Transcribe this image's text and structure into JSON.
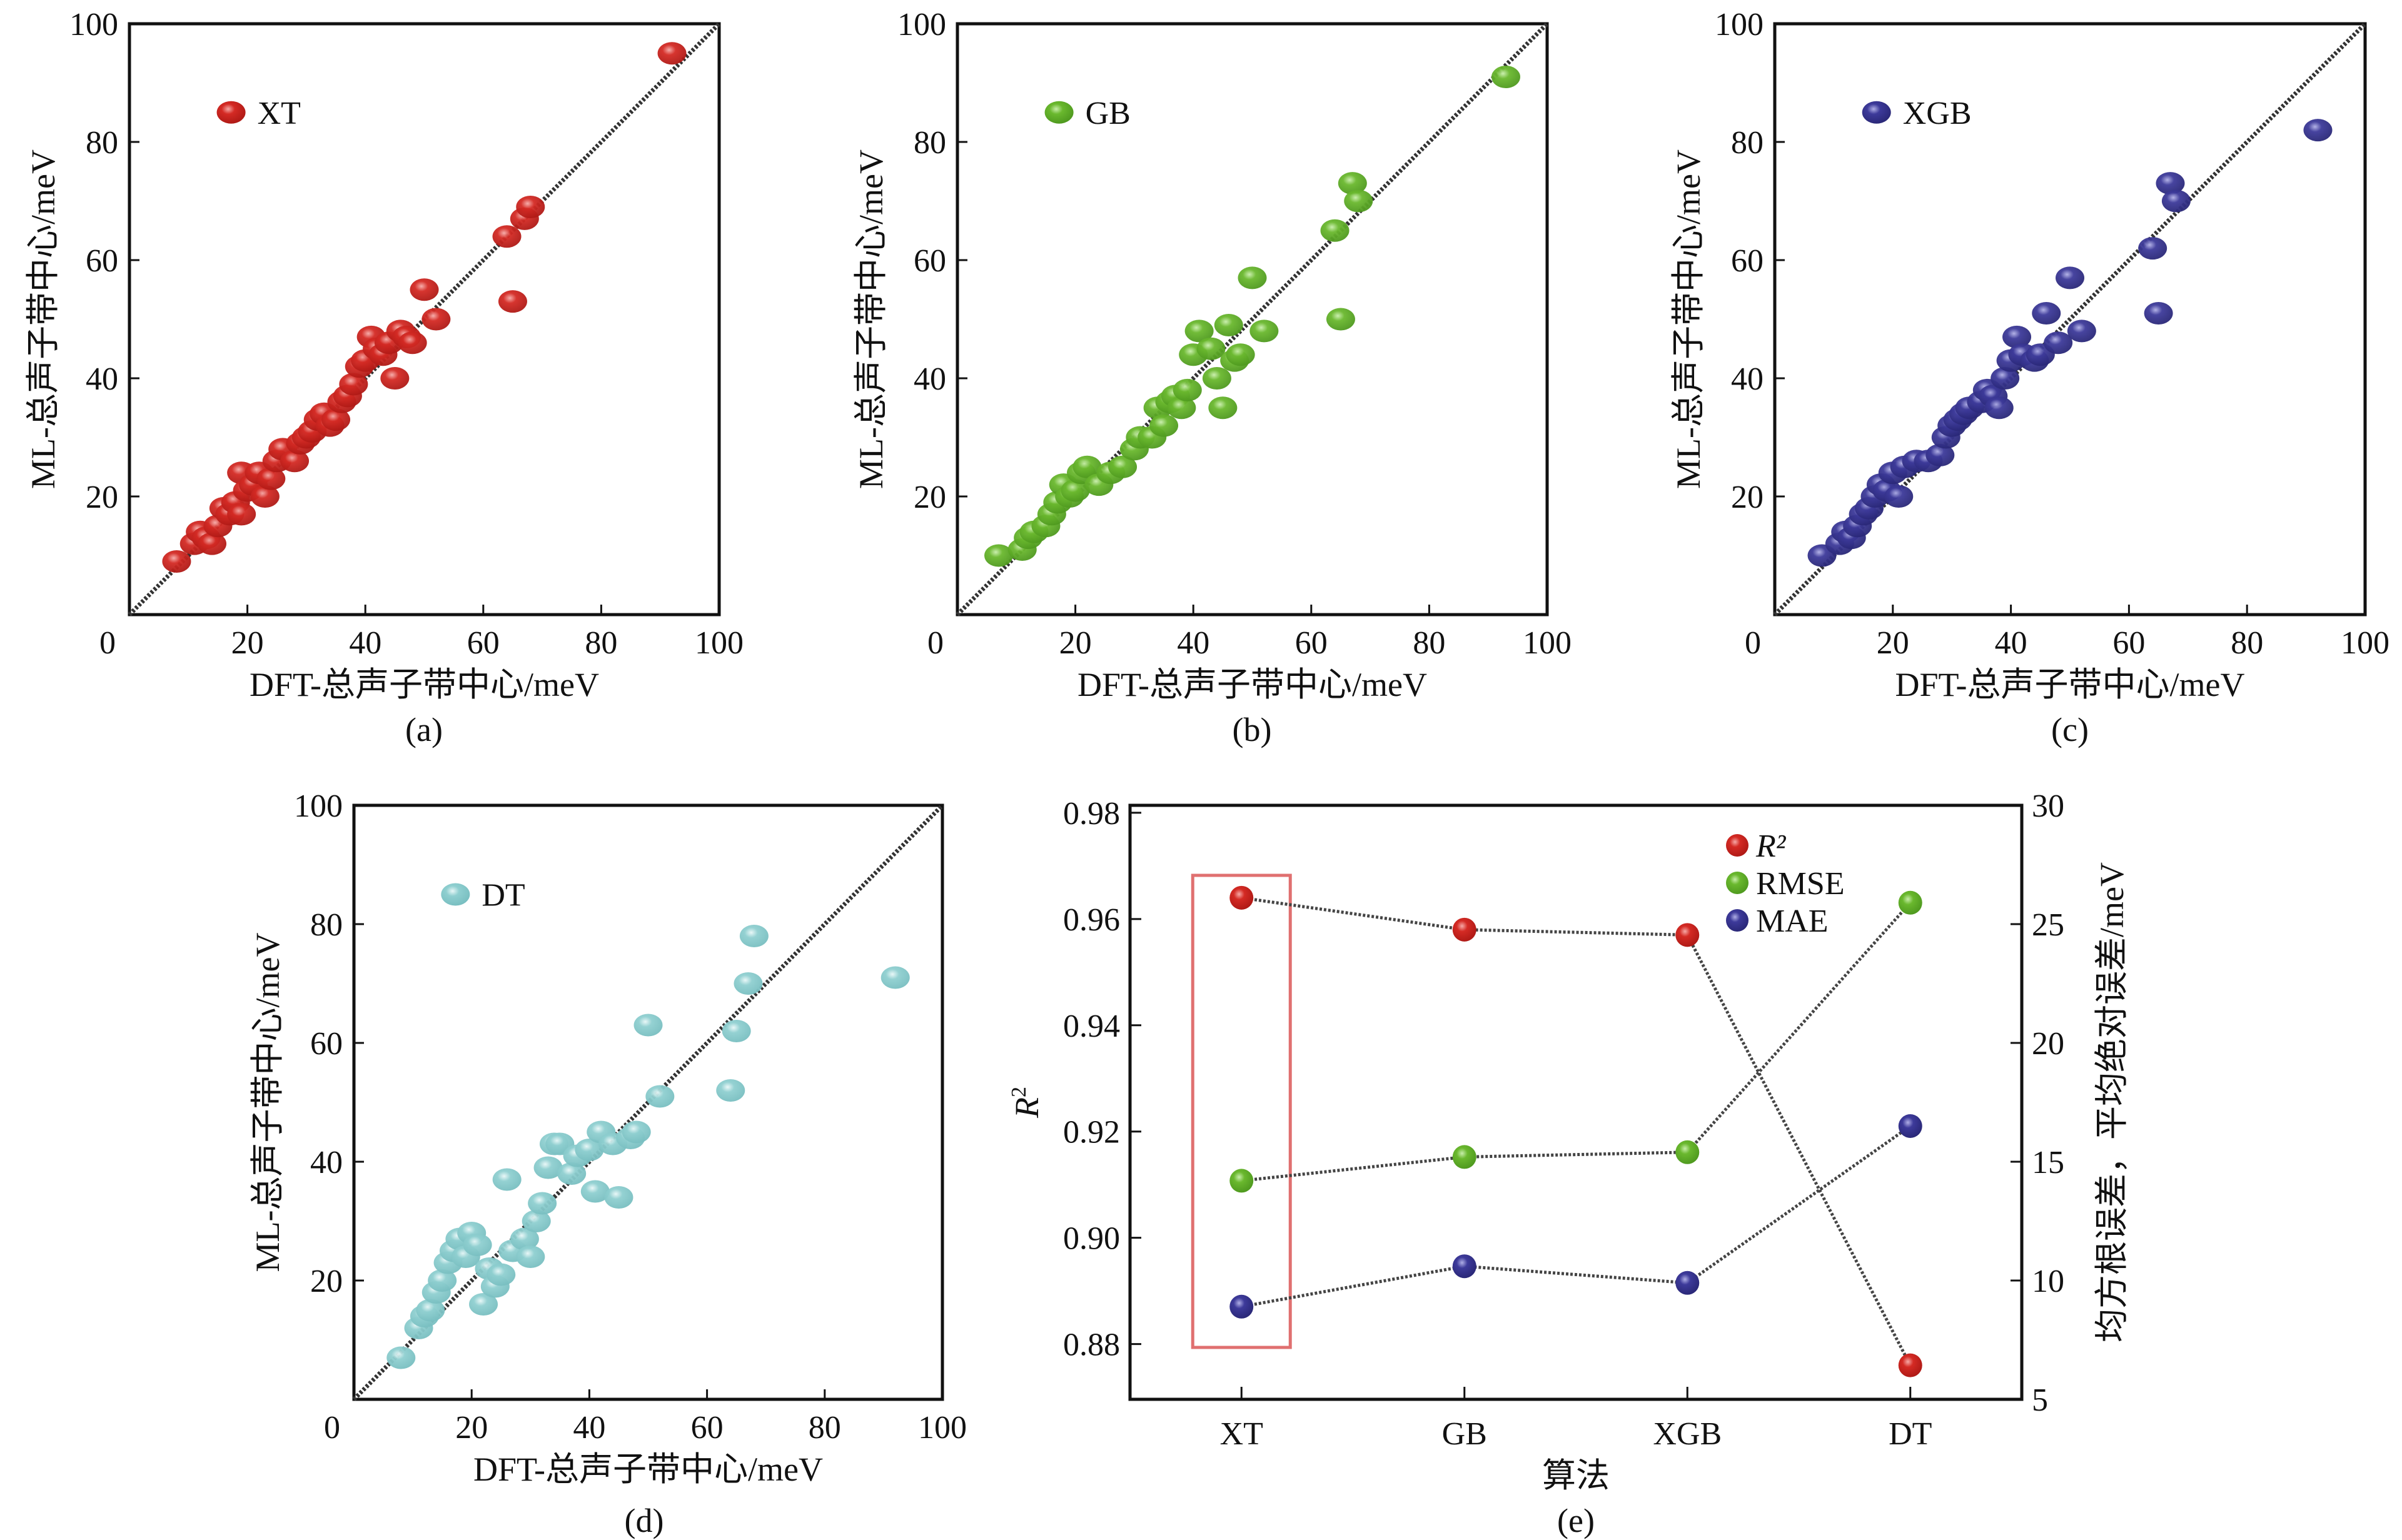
{
  "figure": {
    "marker_colors": {
      "XT": "#d42a24",
      "GB": "#6ab82e",
      "XGB": "#3d3a9a",
      "DT": "#8fcfd0"
    },
    "highlight_box_color": "#e07070"
  },
  "chart_data": [
    {
      "id": "a",
      "type": "scatter",
      "panel_label": "(a)",
      "legend": [
        "XT"
      ],
      "xlabel": "DFT-总声子带中心/meV",
      "ylabel": "ML-总声子带中心/meV",
      "xlim": [
        0,
        100
      ],
      "ylim": [
        0,
        100
      ],
      "xticks": [
        "0",
        "20",
        "40",
        "60",
        "80",
        "100"
      ],
      "yticks": [
        "20",
        "40",
        "60",
        "80",
        "100"
      ],
      "reference_line": "y = x",
      "series": [
        {
          "name": "XT",
          "points": [
            [
              8,
              9
            ],
            [
              11,
              12
            ],
            [
              12,
              14
            ],
            [
              13,
              13
            ],
            [
              14,
              12
            ],
            [
              15,
              15
            ],
            [
              16,
              18
            ],
            [
              17,
              17
            ],
            [
              18,
              19
            ],
            [
              19,
              17
            ],
            [
              19,
              24
            ],
            [
              20,
              21
            ],
            [
              21,
              22
            ],
            [
              22,
              24
            ],
            [
              23,
              20
            ],
            [
              24,
              23
            ],
            [
              25,
              26
            ],
            [
              26,
              28
            ],
            [
              28,
              26
            ],
            [
              29,
              29
            ],
            [
              30,
              30
            ],
            [
              31,
              31
            ],
            [
              32,
              33
            ],
            [
              33,
              34
            ],
            [
              34,
              32
            ],
            [
              35,
              33
            ],
            [
              36,
              36
            ],
            [
              37,
              37
            ],
            [
              38,
              39
            ],
            [
              39,
              42
            ],
            [
              40,
              43
            ],
            [
              41,
              47
            ],
            [
              42,
              45
            ],
            [
              43,
              44
            ],
            [
              44,
              46
            ],
            [
              45,
              40
            ],
            [
              46,
              48
            ],
            [
              47,
              47
            ],
            [
              48,
              46
            ],
            [
              50,
              55
            ],
            [
              52,
              50
            ],
            [
              64,
              64
            ],
            [
              65,
              53
            ],
            [
              67,
              67
            ],
            [
              68,
              69
            ],
            [
              92,
              95
            ]
          ]
        }
      ]
    },
    {
      "id": "b",
      "type": "scatter",
      "panel_label": "(b)",
      "legend": [
        "GB"
      ],
      "xlabel": "DFT-总声子带中心/meV",
      "ylabel": "ML-总声子带中心/meV",
      "xlim": [
        0,
        100
      ],
      "ylim": [
        0,
        100
      ],
      "xticks": [
        "0",
        "20",
        "40",
        "60",
        "80",
        "100"
      ],
      "yticks": [
        "20",
        "40",
        "60",
        "80",
        "100"
      ],
      "reference_line": "y = x",
      "series": [
        {
          "name": "GB",
          "points": [
            [
              7,
              10
            ],
            [
              11,
              11
            ],
            [
              12,
              13
            ],
            [
              13,
              14
            ],
            [
              15,
              15
            ],
            [
              16,
              17
            ],
            [
              17,
              19
            ],
            [
              18,
              22
            ],
            [
              19,
              20
            ],
            [
              20,
              21
            ],
            [
              21,
              24
            ],
            [
              22,
              25
            ],
            [
              24,
              22
            ],
            [
              26,
              24
            ],
            [
              28,
              25
            ],
            [
              30,
              28
            ],
            [
              31,
              30
            ],
            [
              33,
              30
            ],
            [
              34,
              35
            ],
            [
              35,
              32
            ],
            [
              36,
              36
            ],
            [
              37,
              37
            ],
            [
              38,
              35
            ],
            [
              39,
              38
            ],
            [
              40,
              44
            ],
            [
              41,
              48
            ],
            [
              43,
              45
            ],
            [
              44,
              40
            ],
            [
              45,
              35
            ],
            [
              46,
              49
            ],
            [
              47,
              43
            ],
            [
              48,
              44
            ],
            [
              50,
              57
            ],
            [
              52,
              48
            ],
            [
              64,
              65
            ],
            [
              65,
              50
            ],
            [
              67,
              73
            ],
            [
              68,
              70
            ],
            [
              93,
              91
            ]
          ]
        }
      ]
    },
    {
      "id": "c",
      "type": "scatter",
      "panel_label": "(c)",
      "legend": [
        "XGB"
      ],
      "xlabel": "DFT-总声子带中心/meV",
      "ylabel": "ML-总声子带中心/meV",
      "xlim": [
        0,
        100
      ],
      "ylim": [
        0,
        100
      ],
      "xticks": [
        "0",
        "20",
        "40",
        "60",
        "80",
        "100"
      ],
      "yticks": [
        "20",
        "40",
        "60",
        "80",
        "100"
      ],
      "reference_line": "y = x",
      "series": [
        {
          "name": "XGB",
          "points": [
            [
              8,
              10
            ],
            [
              11,
              12
            ],
            [
              12,
              14
            ],
            [
              13,
              13
            ],
            [
              14,
              15
            ],
            [
              15,
              17
            ],
            [
              16,
              18
            ],
            [
              17,
              20
            ],
            [
              18,
              22
            ],
            [
              19,
              21
            ],
            [
              20,
              24
            ],
            [
              21,
              20
            ],
            [
              22,
              25
            ],
            [
              24,
              26
            ],
            [
              26,
              26
            ],
            [
              28,
              27
            ],
            [
              29,
              30
            ],
            [
              30,
              32
            ],
            [
              31,
              33
            ],
            [
              32,
              34
            ],
            [
              33,
              35
            ],
            [
              35,
              36
            ],
            [
              36,
              38
            ],
            [
              37,
              37
            ],
            [
              38,
              35
            ],
            [
              39,
              40
            ],
            [
              40,
              43
            ],
            [
              41,
              47
            ],
            [
              42,
              44
            ],
            [
              44,
              43
            ],
            [
              45,
              44
            ],
            [
              46,
              51
            ],
            [
              48,
              46
            ],
            [
              50,
              57
            ],
            [
              52,
              48
            ],
            [
              64,
              62
            ],
            [
              65,
              51
            ],
            [
              67,
              73
            ],
            [
              68,
              70
            ],
            [
              92,
              82
            ]
          ]
        }
      ]
    },
    {
      "id": "d",
      "type": "scatter",
      "panel_label": "(d)",
      "legend": [
        "DT"
      ],
      "xlabel": "DFT-总声子带中心/meV",
      "ylabel": "ML-总声子带中心/meV",
      "xlim": [
        0,
        100
      ],
      "ylim": [
        0,
        100
      ],
      "xticks": [
        "0",
        "20",
        "40",
        "60",
        "80",
        "100"
      ],
      "yticks": [
        "20",
        "40",
        "60",
        "80",
        "100"
      ],
      "reference_line": "y = x",
      "series": [
        {
          "name": "DT",
          "points": [
            [
              8,
              7
            ],
            [
              11,
              12
            ],
            [
              12,
              14
            ],
            [
              13,
              15
            ],
            [
              14,
              18
            ],
            [
              15,
              20
            ],
            [
              16,
              23
            ],
            [
              17,
              25
            ],
            [
              18,
              27
            ],
            [
              19,
              24
            ],
            [
              20,
              28
            ],
            [
              21,
              26
            ],
            [
              22,
              16
            ],
            [
              23,
              22
            ],
            [
              24,
              19
            ],
            [
              25,
              21
            ],
            [
              26,
              37
            ],
            [
              27,
              25
            ],
            [
              29,
              27
            ],
            [
              30,
              24
            ],
            [
              31,
              30
            ],
            [
              32,
              33
            ],
            [
              33,
              39
            ],
            [
              34,
              43
            ],
            [
              35,
              43
            ],
            [
              37,
              38
            ],
            [
              38,
              41
            ],
            [
              40,
              42
            ],
            [
              41,
              35
            ],
            [
              42,
              45
            ],
            [
              44,
              43
            ],
            [
              45,
              34
            ],
            [
              47,
              44
            ],
            [
              48,
              45
            ],
            [
              50,
              63
            ],
            [
              52,
              51
            ],
            [
              64,
              52
            ],
            [
              65,
              62
            ],
            [
              67,
              70
            ],
            [
              68,
              78
            ],
            [
              92,
              71
            ]
          ]
        }
      ]
    },
    {
      "id": "e",
      "type": "line",
      "panel_label": "(e)",
      "xlabel": "算法",
      "ylabel": "R²",
      "ylabel_right": "均方根误差，平均绝对误差/meV",
      "categories": [
        "XT",
        "GB",
        "XGB",
        "DT"
      ],
      "ylim": [
        0.8696,
        0.9814
      ],
      "ylim_right": [
        5,
        30
      ],
      "yticks": [
        "0.88",
        "0.90",
        "0.92",
        "0.94",
        "0.96",
        "0.98"
      ],
      "yticks_right": [
        "5",
        "10",
        "15",
        "20",
        "25",
        "30"
      ],
      "legend": [
        "R²",
        "RMSE",
        "MAE"
      ],
      "legend_position": "top-right",
      "highlight": "XT",
      "series": [
        {
          "name": "R²",
          "axis": "left",
          "values": [
            0.964,
            0.958,
            0.957,
            0.876
          ]
        },
        {
          "name": "RMSE",
          "axis": "right",
          "values": [
            14.2,
            15.2,
            15.4,
            25.9
          ]
        },
        {
          "name": "MAE",
          "axis": "right",
          "values": [
            8.9,
            10.6,
            9.9,
            16.5
          ]
        }
      ]
    }
  ]
}
